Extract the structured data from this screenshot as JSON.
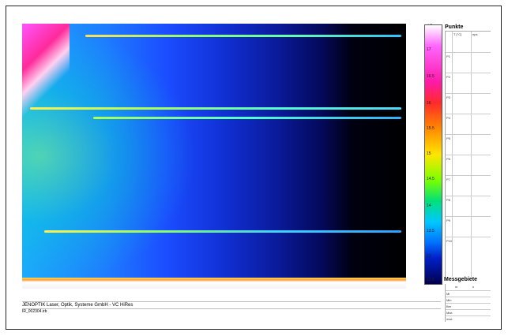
{
  "scale": {
    "unit": "°C",
    "ticks": [
      "17",
      "16.5",
      "16",
      "15.5",
      "15",
      "14.5",
      "14",
      "13.5",
      "13",
      "12.5"
    ]
  },
  "points_panel": {
    "title": "Punkte",
    "col_headers": [
      "T [°C]",
      "eps"
    ],
    "rows": [
      "P1",
      "P2",
      "P3",
      "P4",
      "P5",
      "P6",
      "P7",
      "P8",
      "P9",
      "P10"
    ]
  },
  "areas_panel": {
    "title": "Messgebiete",
    "col_headers": [
      "m",
      "s"
    ],
    "rows": [
      "Mi",
      "Min",
      "Ber",
      "Max",
      "max"
    ]
  },
  "footer": {
    "company": "JENOPTIK Laser, Optik, Systeme GmbH - VC HiRes",
    "filename": "IR_002304.irb"
  },
  "colors": {
    "hot": "#ff2a9a",
    "cold": "#000000",
    "mid": "#1b4cff"
  }
}
